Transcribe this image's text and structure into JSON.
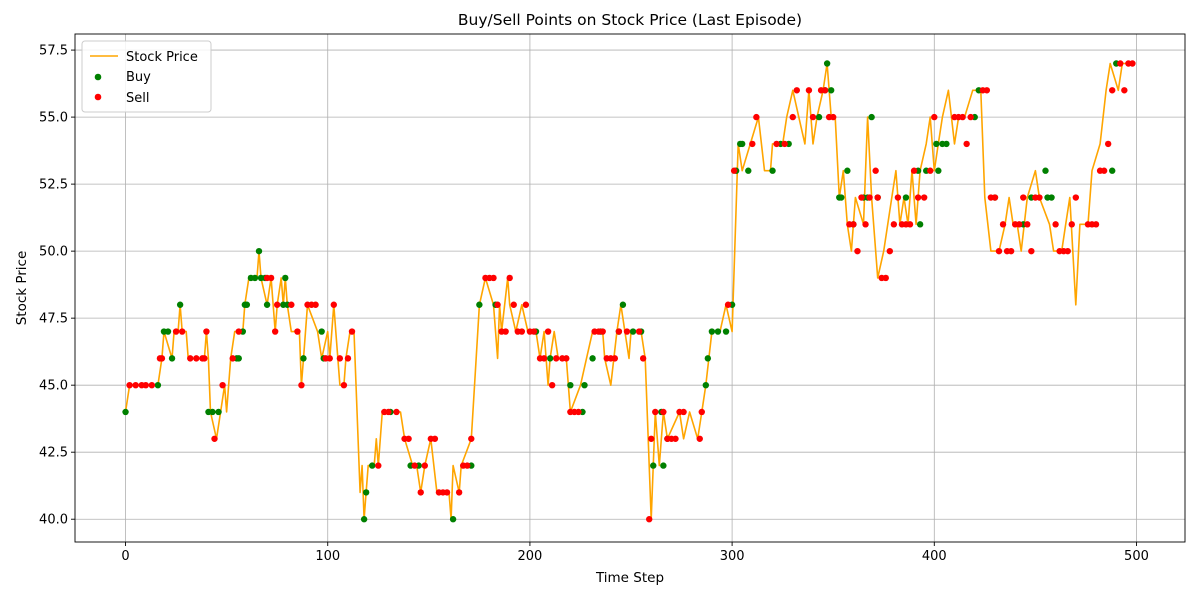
{
  "chart_data": {
    "type": "line",
    "title": "Buy/Sell Points on Stock Price (Last Episode)",
    "xlabel": "Time Step",
    "ylabel": "Stock Price",
    "xlim": [
      -25,
      524
    ],
    "ylim": [
      39.15,
      58.1
    ],
    "xticks": [
      0,
      100,
      200,
      300,
      400,
      500
    ],
    "yticks": [
      40.0,
      42.5,
      45.0,
      47.5,
      50.0,
      52.5,
      55.0,
      57.5
    ],
    "ytick_labels": [
      "40.0",
      "42.5",
      "45.0",
      "47.5",
      "50.0",
      "52.5",
      "55.0",
      "57.5"
    ],
    "grid": true,
    "legend_position": "upper-left",
    "colors": {
      "price": "#FFA500",
      "buy": "#008000",
      "sell": "#FF0000"
    },
    "series": [
      {
        "name": "Stock Price",
        "kind": "line"
      },
      {
        "name": "Buy",
        "kind": "scatter"
      },
      {
        "name": "Sell",
        "kind": "scatter"
      }
    ],
    "price": [
      [
        0,
        44
      ],
      [
        2,
        45
      ],
      [
        16,
        45
      ],
      [
        18,
        46
      ],
      [
        19,
        47
      ],
      [
        23,
        46
      ],
      [
        24,
        47
      ],
      [
        26,
        47
      ],
      [
        27,
        48
      ],
      [
        28,
        47
      ],
      [
        30,
        47
      ],
      [
        31,
        46
      ],
      [
        39,
        46
      ],
      [
        40,
        47
      ],
      [
        41,
        46
      ],
      [
        42,
        44
      ],
      [
        45,
        43
      ],
      [
        47,
        44
      ],
      [
        49,
        45
      ],
      [
        50,
        44
      ],
      [
        52,
        46
      ],
      [
        54,
        47
      ],
      [
        58,
        47
      ],
      [
        59,
        48
      ],
      [
        61,
        49
      ],
      [
        65,
        49
      ],
      [
        66,
        50
      ],
      [
        67,
        49
      ],
      [
        70,
        48
      ],
      [
        72,
        49
      ],
      [
        74,
        47
      ],
      [
        75,
        48
      ],
      [
        77,
        49
      ],
      [
        78,
        48
      ],
      [
        79,
        49
      ],
      [
        80,
        48
      ],
      [
        82,
        47
      ],
      [
        86,
        47
      ],
      [
        87,
        45
      ],
      [
        88,
        46
      ],
      [
        90,
        48
      ],
      [
        95,
        47
      ],
      [
        97,
        46
      ],
      [
        100,
        47
      ],
      [
        101,
        46
      ],
      [
        103,
        48
      ],
      [
        104,
        47
      ],
      [
        106,
        45
      ],
      [
        108,
        45
      ],
      [
        109,
        46
      ],
      [
        111,
        47
      ],
      [
        113,
        47
      ],
      [
        116,
        41
      ],
      [
        117,
        42
      ],
      [
        118,
        40
      ],
      [
        119,
        41
      ],
      [
        120,
        42
      ],
      [
        123,
        42
      ],
      [
        124,
        43
      ],
      [
        125,
        42
      ],
      [
        127,
        44
      ],
      [
        133,
        44
      ],
      [
        136,
        44
      ],
      [
        138,
        43
      ],
      [
        142,
        42
      ],
      [
        144,
        42
      ],
      [
        146,
        41
      ],
      [
        148,
        42
      ],
      [
        151,
        43
      ],
      [
        154,
        41
      ],
      [
        160,
        41
      ],
      [
        161,
        40
      ],
      [
        162,
        42
      ],
      [
        165,
        41
      ],
      [
        166,
        42
      ],
      [
        171,
        43
      ],
      [
        175,
        48
      ],
      [
        178,
        49
      ],
      [
        182,
        48
      ],
      [
        184,
        46
      ],
      [
        185,
        48
      ],
      [
        186,
        47
      ],
      [
        189,
        49
      ],
      [
        190,
        48
      ],
      [
        193,
        47
      ],
      [
        196,
        48
      ],
      [
        199,
        47
      ],
      [
        203,
        47
      ],
      [
        205,
        46
      ],
      [
        207,
        47
      ],
      [
        209,
        45
      ],
      [
        210,
        46
      ],
      [
        212,
        47
      ],
      [
        214,
        46
      ],
      [
        218,
        46
      ],
      [
        220,
        44
      ],
      [
        225,
        45
      ],
      [
        228,
        46
      ],
      [
        231,
        47
      ],
      [
        236,
        47
      ],
      [
        237,
        46
      ],
      [
        240,
        45
      ],
      [
        243,
        47
      ],
      [
        245,
        48
      ],
      [
        247,
        47
      ],
      [
        249,
        46
      ],
      [
        250,
        47
      ],
      [
        255,
        47
      ],
      [
        257,
        46
      ],
      [
        260,
        40
      ],
      [
        262,
        44
      ],
      [
        264,
        42
      ],
      [
        266,
        44
      ],
      [
        268,
        43
      ],
      [
        274,
        44
      ],
      [
        276,
        43
      ],
      [
        279,
        44
      ],
      [
        283,
        43
      ],
      [
        285,
        44
      ],
      [
        287,
        45
      ],
      [
        290,
        47
      ],
      [
        294,
        47
      ],
      [
        297,
        48
      ],
      [
        300,
        47
      ],
      [
        303,
        54
      ],
      [
        305,
        53
      ],
      [
        309,
        54
      ],
      [
        313,
        55
      ],
      [
        316,
        53
      ],
      [
        319,
        53
      ],
      [
        320,
        54
      ],
      [
        323,
        54
      ],
      [
        325,
        54
      ],
      [
        327,
        55
      ],
      [
        330,
        56
      ],
      [
        333,
        55
      ],
      [
        336,
        54
      ],
      [
        338,
        56
      ],
      [
        340,
        54
      ],
      [
        342,
        55
      ],
      [
        345,
        56
      ],
      [
        347,
        57
      ],
      [
        349,
        55
      ],
      [
        351,
        55
      ],
      [
        353,
        52
      ],
      [
        355,
        53
      ],
      [
        357,
        51
      ],
      [
        359,
        50
      ],
      [
        361,
        52
      ],
      [
        365,
        51
      ],
      [
        367,
        55
      ],
      [
        369,
        52
      ],
      [
        372,
        49
      ],
      [
        375,
        50
      ],
      [
        379,
        52
      ],
      [
        381,
        53
      ],
      [
        383,
        51
      ],
      [
        385,
        52
      ],
      [
        387,
        51
      ],
      [
        389,
        53
      ],
      [
        391,
        51
      ],
      [
        393,
        53
      ],
      [
        396,
        54
      ],
      [
        398,
        55
      ],
      [
        400,
        53
      ],
      [
        402,
        54
      ],
      [
        404,
        55
      ],
      [
        407,
        56
      ],
      [
        410,
        54
      ],
      [
        412,
        55
      ],
      [
        415,
        55
      ],
      [
        419,
        56
      ],
      [
        423,
        56
      ],
      [
        425,
        52
      ],
      [
        428,
        50
      ],
      [
        432,
        50
      ],
      [
        435,
        51
      ],
      [
        437,
        52
      ],
      [
        439,
        51
      ],
      [
        441,
        51
      ],
      [
        443,
        50
      ],
      [
        446,
        52
      ],
      [
        450,
        53
      ],
      [
        452,
        52
      ],
      [
        457,
        51
      ],
      [
        459,
        50
      ],
      [
        463,
        50
      ],
      [
        465,
        51
      ],
      [
        467,
        52
      ],
      [
        470,
        48
      ],
      [
        472,
        51
      ],
      [
        476,
        51
      ],
      [
        478,
        53
      ],
      [
        482,
        54
      ],
      [
        485,
        56
      ],
      [
        487,
        57
      ],
      [
        491,
        56
      ],
      [
        493,
        57
      ],
      [
        498,
        57
      ]
    ],
    "buy_points": [
      [
        0,
        44
      ],
      [
        16,
        45
      ],
      [
        19,
        47
      ],
      [
        21,
        47
      ],
      [
        23,
        46
      ],
      [
        27,
        48
      ],
      [
        41,
        44
      ],
      [
        43,
        44
      ],
      [
        46,
        44
      ],
      [
        55,
        46
      ],
      [
        56,
        46
      ],
      [
        58,
        47
      ],
      [
        59,
        48
      ],
      [
        60,
        48
      ],
      [
        62,
        49
      ],
      [
        64,
        49
      ],
      [
        66,
        50
      ],
      [
        67,
        49
      ],
      [
        69,
        49
      ],
      [
        70,
        48
      ],
      [
        78,
        48
      ],
      [
        79,
        49
      ],
      [
        80,
        48
      ],
      [
        88,
        46
      ],
      [
        97,
        47
      ],
      [
        98,
        46
      ],
      [
        118,
        40
      ],
      [
        119,
        41
      ],
      [
        122,
        42
      ],
      [
        131,
        44
      ],
      [
        141,
        42
      ],
      [
        145,
        42
      ],
      [
        162,
        40
      ],
      [
        171,
        42
      ],
      [
        175,
        48
      ],
      [
        183,
        48
      ],
      [
        203,
        47
      ],
      [
        210,
        46
      ],
      [
        220,
        45
      ],
      [
        226,
        44
      ],
      [
        227,
        45
      ],
      [
        231,
        46
      ],
      [
        235,
        47
      ],
      [
        244,
        47
      ],
      [
        246,
        48
      ],
      [
        251,
        47
      ],
      [
        255,
        47
      ],
      [
        261,
        42
      ],
      [
        265,
        44
      ],
      [
        266,
        42
      ],
      [
        268,
        43
      ],
      [
        287,
        45
      ],
      [
        288,
        46
      ],
      [
        290,
        47
      ],
      [
        293,
        47
      ],
      [
        297,
        47
      ],
      [
        300,
        48
      ],
      [
        302,
        53
      ],
      [
        304,
        54
      ],
      [
        305,
        54
      ],
      [
        308,
        53
      ],
      [
        320,
        53
      ],
      [
        324,
        54
      ],
      [
        328,
        54
      ],
      [
        343,
        55
      ],
      [
        346,
        56
      ],
      [
        347,
        57
      ],
      [
        349,
        56
      ],
      [
        353,
        52
      ],
      [
        354,
        52
      ],
      [
        357,
        53
      ],
      [
        360,
        51
      ],
      [
        365,
        52
      ],
      [
        367,
        52
      ],
      [
        369,
        55
      ],
      [
        372,
        52
      ],
      [
        386,
        52
      ],
      [
        392,
        53
      ],
      [
        393,
        51
      ],
      [
        396,
        53
      ],
      [
        401,
        54
      ],
      [
        402,
        53
      ],
      [
        404,
        54
      ],
      [
        406,
        54
      ],
      [
        420,
        55
      ],
      [
        422,
        56
      ],
      [
        430,
        52
      ],
      [
        444,
        51
      ],
      [
        448,
        52
      ],
      [
        455,
        53
      ],
      [
        456,
        52
      ],
      [
        458,
        52
      ],
      [
        488,
        53
      ],
      [
        490,
        57
      ]
    ],
    "sell_points": [
      [
        2,
        45
      ],
      [
        5,
        45
      ],
      [
        8,
        45
      ],
      [
        10,
        45
      ],
      [
        13,
        45
      ],
      [
        17,
        46
      ],
      [
        18,
        46
      ],
      [
        25,
        47
      ],
      [
        28,
        47
      ],
      [
        32,
        46
      ],
      [
        35,
        46
      ],
      [
        38,
        46
      ],
      [
        39,
        46
      ],
      [
        40,
        47
      ],
      [
        44,
        43
      ],
      [
        48,
        45
      ],
      [
        53,
        46
      ],
      [
        56,
        47
      ],
      [
        70,
        49
      ],
      [
        72,
        49
      ],
      [
        74,
        47
      ],
      [
        75,
        48
      ],
      [
        82,
        48
      ],
      [
        85,
        47
      ],
      [
        87,
        45
      ],
      [
        90,
        48
      ],
      [
        92,
        48
      ],
      [
        94,
        48
      ],
      [
        99,
        46
      ],
      [
        101,
        46
      ],
      [
        103,
        48
      ],
      [
        106,
        46
      ],
      [
        108,
        45
      ],
      [
        110,
        46
      ],
      [
        112,
        47
      ],
      [
        125,
        42
      ],
      [
        128,
        44
      ],
      [
        130,
        44
      ],
      [
        134,
        44
      ],
      [
        138,
        43
      ],
      [
        140,
        43
      ],
      [
        143,
        42
      ],
      [
        146,
        41
      ],
      [
        148,
        42
      ],
      [
        151,
        43
      ],
      [
        153,
        43
      ],
      [
        155,
        41
      ],
      [
        157,
        41
      ],
      [
        159,
        41
      ],
      [
        165,
        41
      ],
      [
        167,
        42
      ],
      [
        169,
        42
      ],
      [
        171,
        43
      ],
      [
        178,
        49
      ],
      [
        180,
        49
      ],
      [
        182,
        49
      ],
      [
        184,
        48
      ],
      [
        186,
        47
      ],
      [
        188,
        47
      ],
      [
        190,
        49
      ],
      [
        192,
        48
      ],
      [
        194,
        47
      ],
      [
        196,
        47
      ],
      [
        198,
        48
      ],
      [
        200,
        47
      ],
      [
        202,
        47
      ],
      [
        205,
        46
      ],
      [
        207,
        46
      ],
      [
        209,
        47
      ],
      [
        211,
        45
      ],
      [
        213,
        46
      ],
      [
        216,
        46
      ],
      [
        218,
        46
      ],
      [
        220,
        44
      ],
      [
        222,
        44
      ],
      [
        224,
        44
      ],
      [
        232,
        47
      ],
      [
        234,
        47
      ],
      [
        236,
        47
      ],
      [
        238,
        46
      ],
      [
        240,
        46
      ],
      [
        242,
        46
      ],
      [
        244,
        47
      ],
      [
        248,
        47
      ],
      [
        254,
        47
      ],
      [
        256,
        46
      ],
      [
        259,
        40
      ],
      [
        260,
        43
      ],
      [
        262,
        44
      ],
      [
        266,
        44
      ],
      [
        268,
        43
      ],
      [
        270,
        43
      ],
      [
        272,
        43
      ],
      [
        274,
        44
      ],
      [
        276,
        44
      ],
      [
        284,
        43
      ],
      [
        285,
        44
      ],
      [
        298,
        48
      ],
      [
        301,
        53
      ],
      [
        310,
        54
      ],
      [
        312,
        55
      ],
      [
        322,
        54
      ],
      [
        326,
        54
      ],
      [
        330,
        55
      ],
      [
        332,
        56
      ],
      [
        338,
        56
      ],
      [
        340,
        55
      ],
      [
        344,
        56
      ],
      [
        346,
        56
      ],
      [
        348,
        55
      ],
      [
        350,
        55
      ],
      [
        358,
        51
      ],
      [
        360,
        51
      ],
      [
        362,
        50
      ],
      [
        364,
        52
      ],
      [
        366,
        51
      ],
      [
        368,
        52
      ],
      [
        371,
        53
      ],
      [
        372,
        52
      ],
      [
        374,
        49
      ],
      [
        376,
        49
      ],
      [
        378,
        50
      ],
      [
        380,
        51
      ],
      [
        382,
        52
      ],
      [
        384,
        51
      ],
      [
        386,
        51
      ],
      [
        388,
        51
      ],
      [
        390,
        53
      ],
      [
        392,
        52
      ],
      [
        395,
        52
      ],
      [
        398,
        53
      ],
      [
        400,
        55
      ],
      [
        410,
        55
      ],
      [
        412,
        55
      ],
      [
        414,
        55
      ],
      [
        416,
        54
      ],
      [
        418,
        55
      ],
      [
        424,
        56
      ],
      [
        426,
        56
      ],
      [
        428,
        52
      ],
      [
        430,
        52
      ],
      [
        432,
        50
      ],
      [
        434,
        51
      ],
      [
        436,
        50
      ],
      [
        438,
        50
      ],
      [
        440,
        51
      ],
      [
        442,
        51
      ],
      [
        444,
        52
      ],
      [
        446,
        51
      ],
      [
        448,
        50
      ],
      [
        450,
        52
      ],
      [
        452,
        52
      ],
      [
        460,
        51
      ],
      [
        462,
        50
      ],
      [
        464,
        50
      ],
      [
        466,
        50
      ],
      [
        468,
        51
      ],
      [
        470,
        52
      ],
      [
        476,
        51
      ],
      [
        478,
        51
      ],
      [
        480,
        51
      ],
      [
        482,
        53
      ],
      [
        484,
        53
      ],
      [
        486,
        54
      ],
      [
        488,
        56
      ],
      [
        492,
        57
      ],
      [
        494,
        56
      ],
      [
        496,
        57
      ],
      [
        498,
        57
      ]
    ]
  }
}
